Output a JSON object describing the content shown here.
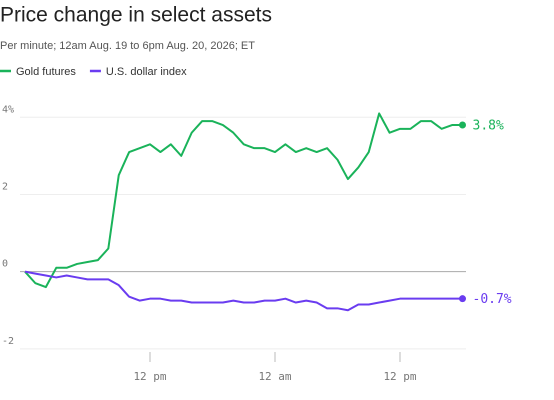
{
  "chart_data": {
    "type": "line",
    "title": "Price change in select assets",
    "subtitle": "Per minute; 12am Aug. 19 to 6pm Aug. 20, 2026; ET",
    "x": [
      0,
      1,
      2,
      3,
      4,
      5,
      6,
      7,
      8,
      9,
      10,
      11,
      12,
      13,
      14,
      15,
      16,
      17,
      18,
      19,
      20,
      21,
      22,
      23,
      24,
      25,
      26,
      27,
      28,
      29,
      30,
      31,
      32,
      33,
      34,
      35,
      36,
      37,
      38,
      39,
      40,
      41,
      42
    ],
    "xlim": [
      0,
      42
    ],
    "xticks": [
      {
        "value": 12,
        "label": "12 pm"
      },
      {
        "value": 24,
        "label": "12 am"
      },
      {
        "value": 36,
        "label": "12 pm"
      }
    ],
    "ylim": [
      -2.6,
      4.5
    ],
    "yticks": [
      {
        "value": 4,
        "label": "4%"
      },
      2,
      0,
      -2
    ],
    "grid": true,
    "legend": "top-left",
    "series": [
      {
        "name": "Gold futures",
        "color": "#1ab35a",
        "values": [
          0,
          -0.3,
          -0.4,
          0.1,
          0.1,
          0.2,
          0.25,
          0.3,
          0.6,
          2.5,
          3.1,
          3.2,
          3.3,
          3.1,
          3.3,
          3.0,
          3.6,
          3.9,
          3.9,
          3.8,
          3.6,
          3.3,
          3.2,
          3.2,
          3.1,
          3.3,
          3.1,
          3.2,
          3.1,
          3.2,
          2.9,
          2.4,
          2.7,
          3.1,
          4.1,
          3.6,
          3.7,
          3.7,
          3.9,
          3.9,
          3.7,
          3.8,
          3.8
        ],
        "value_labels": [
          null,
          null,
          null,
          null,
          null,
          null,
          null,
          null,
          null,
          null,
          null,
          null,
          null,
          null,
          null,
          null,
          null,
          null,
          null,
          null,
          null,
          null,
          null,
          null,
          null,
          null,
          null,
          null,
          null,
          null,
          null,
          null,
          null,
          null,
          null,
          null,
          null,
          null,
          null,
          null,
          null,
          null,
          "3.8%"
        ]
      },
      {
        "name": "U.S. dollar index",
        "color": "#6a3cf0",
        "values": [
          0,
          -0.05,
          -0.1,
          -0.15,
          -0.1,
          -0.15,
          -0.2,
          -0.2,
          -0.2,
          -0.35,
          -0.65,
          -0.75,
          -0.7,
          -0.7,
          -0.75,
          -0.75,
          -0.8,
          -0.8,
          -0.8,
          -0.8,
          -0.75,
          -0.8,
          -0.8,
          -0.75,
          -0.75,
          -0.7,
          -0.8,
          -0.75,
          -0.8,
          -0.95,
          -0.95,
          -1.0,
          -0.85,
          -0.85,
          -0.8,
          -0.75,
          -0.7,
          -0.7,
          -0.7,
          -0.7,
          -0.7,
          -0.7,
          -0.7
        ],
        "value_labels": [
          null,
          null,
          null,
          null,
          null,
          null,
          null,
          null,
          null,
          null,
          null,
          null,
          null,
          null,
          null,
          null,
          null,
          null,
          null,
          null,
          null,
          null,
          null,
          null,
          null,
          null,
          null,
          null,
          null,
          null,
          null,
          null,
          null,
          null,
          null,
          null,
          null,
          null,
          null,
          null,
          null,
          null,
          "-0.7%"
        ]
      }
    ]
  }
}
